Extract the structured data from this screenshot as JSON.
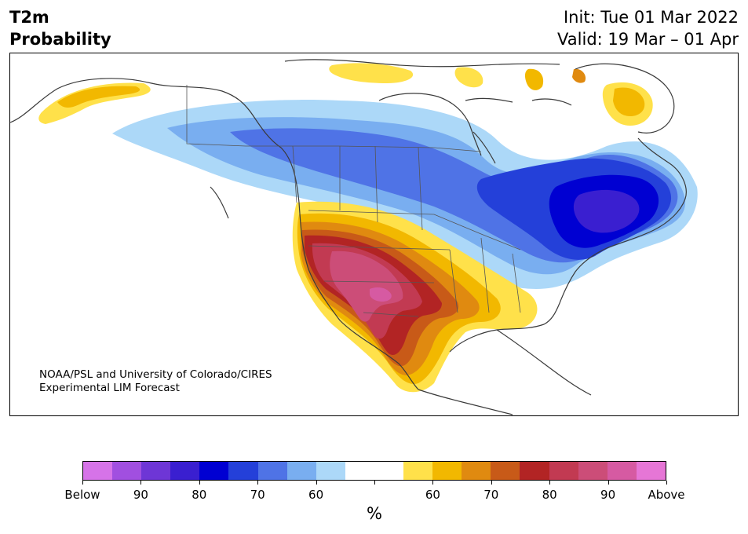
{
  "title": {
    "left_line1": "T2m",
    "left_line2": "Probability",
    "right_line1": "Init: Tue 01 Mar 2022",
    "right_line2": "Valid: 19 Mar – 01 Apr"
  },
  "credit": {
    "line1": "NOAA/PSL and University of Colorado/CIRES",
    "line2": "Experimental LIM Forecast"
  },
  "colorbar": {
    "colors": [
      "#d673e8",
      "#a14fe0",
      "#6e36d6",
      "#3a1fd0",
      "#0000d2",
      "#2440d9",
      "#4f73e6",
      "#79aef0",
      "#acd8f8",
      "#ffffff",
      "#ffffff",
      "#ffe14a",
      "#f2b800",
      "#e08a10",
      "#c85a18",
      "#b22424",
      "#c23a52",
      "#cc4d78",
      "#d65aa2",
      "#e676d6"
    ],
    "labels": [
      "Below",
      "90",
      "80",
      "70",
      "60",
      "",
      "60",
      "70",
      "80",
      "90",
      "Above"
    ],
    "unit": "%"
  },
  "legend_colors": {
    "cold_light": "#acd8f8",
    "cold_mid": "#79aef0",
    "cold_strong": "#4f73e6",
    "cold_deep": "#2440d9",
    "cold_deepest": "#0000d2",
    "cold_extreme": "#3a1fd0",
    "warm_light": "#ffe14a",
    "warm_mid": "#f2b800",
    "warm_strong": "#e08a10",
    "warm_deep": "#c85a18",
    "warm_deeper": "#b22424",
    "warm_extreme": "#c23a52",
    "warm_max": "#cc4d78"
  }
}
